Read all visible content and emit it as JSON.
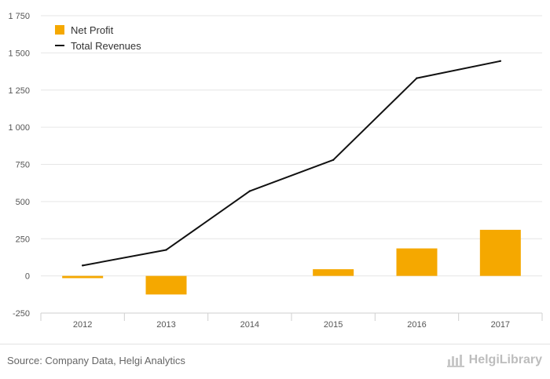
{
  "chart_data": {
    "type": "bar",
    "categories": [
      "2012",
      "2013",
      "2014",
      "2015",
      "2016",
      "2017"
    ],
    "series": [
      {
        "name": "Net Profit",
        "kind": "bar",
        "color": "#F5A800",
        "values": [
          -15,
          -125,
          0,
          45,
          185,
          310
        ]
      },
      {
        "name": "Total Revenues",
        "kind": "line",
        "color": "#111111",
        "values": [
          70,
          175,
          570,
          780,
          1330,
          1445
        ]
      }
    ],
    "ylim": [
      -250,
      1750
    ],
    "yticks": [
      -250,
      0,
      250,
      500,
      750,
      1000,
      1250,
      1500,
      1750
    ],
    "ytick_labels": [
      "-250",
      "0",
      "250",
      "500",
      "750",
      "1 000",
      "1 250",
      "1 500",
      "1 750"
    ],
    "grid": true,
    "legend_position": "top-left",
    "title": "",
    "xlabel": "",
    "ylabel": ""
  },
  "legend": {
    "net_profit": "Net Profit",
    "total_revenues": "Total Revenues"
  },
  "footer": {
    "source": "Source: Company Data, Helgi Analytics",
    "brand": "HelgiLibrary",
    "brand_icon": "helgi-logo-icon"
  }
}
